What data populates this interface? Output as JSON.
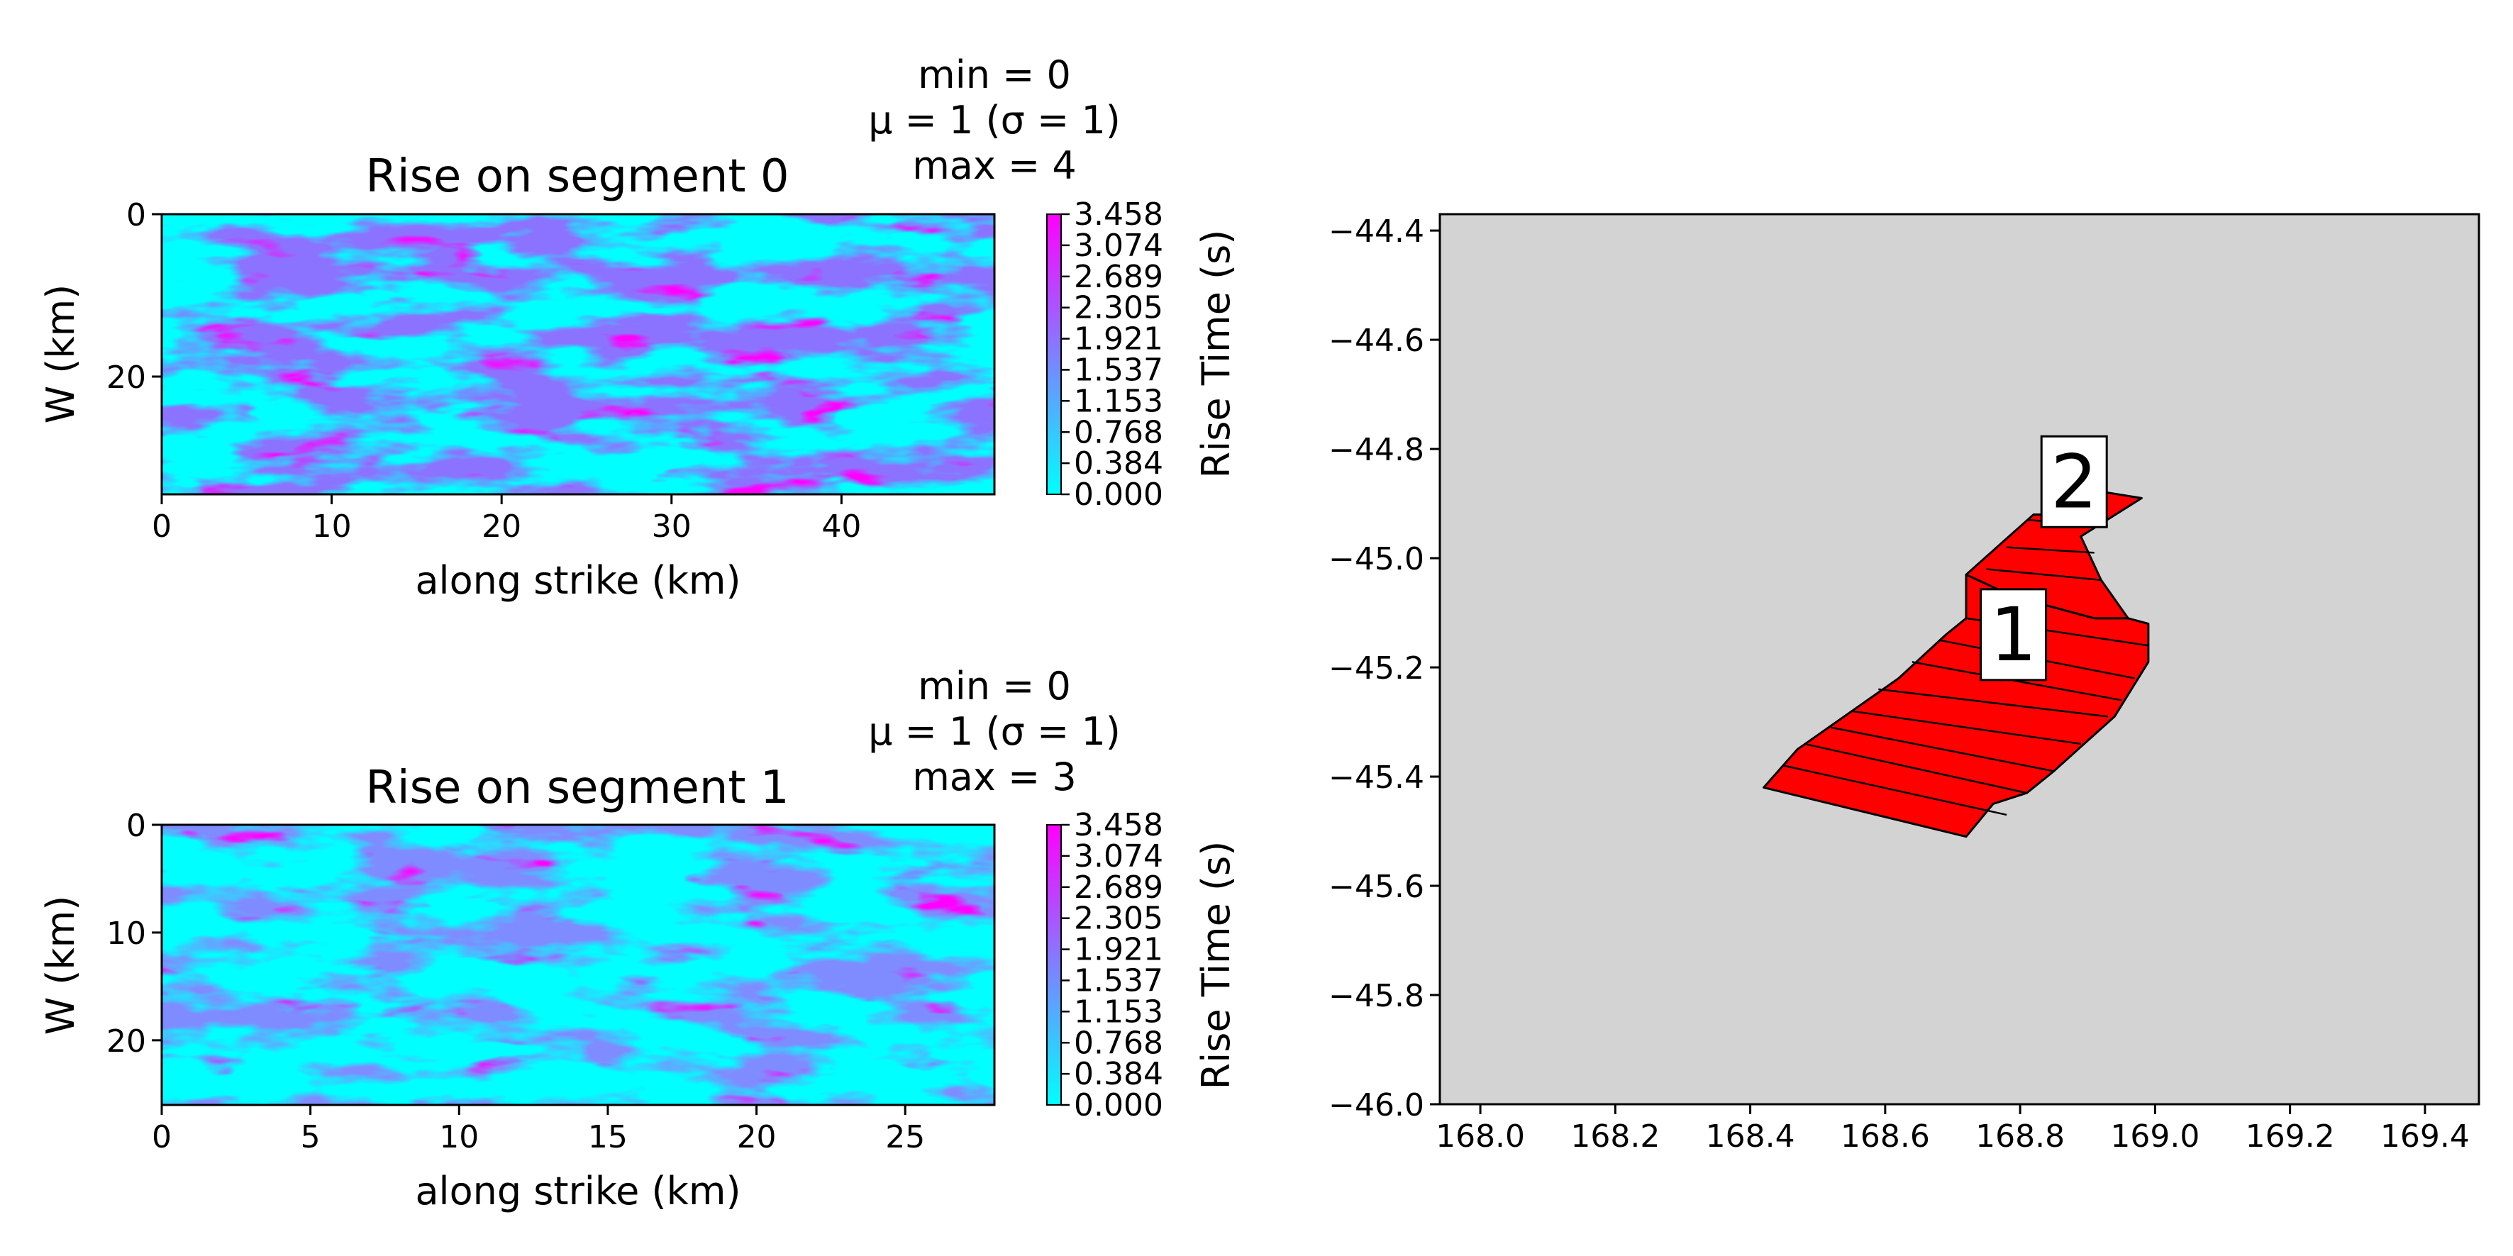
{
  "chart_data": [
    {
      "type": "heatmap",
      "title": "Rise on segment 0",
      "stats": [
        "min = 0",
        "μ = 1 (σ = 1)",
        "max = 4"
      ],
      "xlabel": "along strike (km)",
      "ylabel": "W (km)",
      "xlim": [
        0,
        49
      ],
      "ylim": [
        34.5,
        0
      ],
      "xticks": [
        0,
        10,
        20,
        30,
        40
      ],
      "yticks": [
        0,
        20
      ],
      "colorbar": {
        "label": "Rise Time (s)",
        "ticks": [
          "0.000",
          "0.384",
          "0.768",
          "1.153",
          "1.537",
          "1.921",
          "2.305",
          "2.689",
          "3.074",
          "3.458"
        ],
        "range": [
          0,
          3.458
        ],
        "colormap": [
          "#00ffff",
          "#ff00ff"
        ]
      }
    },
    {
      "type": "heatmap",
      "title": "Rise on segment 1",
      "stats": [
        "min = 0",
        "μ = 1 (σ = 1)",
        "max = 3"
      ],
      "xlabel": "along strike (km)",
      "ylabel": "W (km)",
      "xlim": [
        0,
        28
      ],
      "ylim": [
        26,
        0
      ],
      "xticks": [
        0,
        5,
        10,
        15,
        20,
        25
      ],
      "yticks": [
        0,
        10,
        20
      ],
      "colorbar": {
        "label": "Rise Time (s)",
        "ticks": [
          "0.000",
          "0.384",
          "0.768",
          "1.153",
          "1.537",
          "1.921",
          "2.305",
          "2.689",
          "3.074",
          "3.458"
        ],
        "range": [
          0,
          3.458
        ],
        "colormap": [
          "#00ffff",
          "#ff00ff"
        ]
      }
    },
    {
      "type": "map",
      "xlim": [
        167.94,
        169.48
      ],
      "ylim": [
        -46.0,
        -44.37
      ],
      "xticks": [
        "168.0",
        "168.2",
        "168.4",
        "168.6",
        "168.8",
        "169.0",
        "169.2",
        "169.4"
      ],
      "yticks": [
        "−44.4",
        "−44.6",
        "−44.8",
        "−45.0",
        "−45.2",
        "−45.4",
        "−45.6",
        "−45.8",
        "−46.0"
      ],
      "xtick_values": [
        168.0,
        168.2,
        168.4,
        168.6,
        168.8,
        169.0,
        169.2,
        169.4
      ],
      "ytick_values": [
        -44.4,
        -44.6,
        -44.8,
        -45.0,
        -45.2,
        -45.4,
        -45.6,
        -45.8,
        -46.0
      ],
      "background_color": "#d3d3d3",
      "fault_color": "#ff0000",
      "segments": [
        {
          "label": "1",
          "label_at": [
            168.79,
            -45.14
          ],
          "outline": [
            [
              168.72,
              -45.51
            ],
            [
              168.42,
              -45.42
            ],
            [
              168.47,
              -45.35
            ],
            [
              168.62,
              -45.22
            ],
            [
              168.69,
              -45.14
            ],
            [
              168.72,
              -45.11
            ],
            [
              168.72,
              -45.03
            ],
            [
              168.79,
              -45.07
            ],
            [
              168.91,
              -45.11
            ],
            [
              168.96,
              -45.11
            ],
            [
              168.99,
              -45.12
            ],
            [
              168.99,
              -45.19
            ],
            [
              168.94,
              -45.29
            ],
            [
              168.85,
              -45.39
            ],
            [
              168.81,
              -45.43
            ],
            [
              168.76,
              -45.45
            ]
          ],
          "strips": [
            [
              [
                168.45,
                -45.38
              ],
              [
                168.78,
                -45.47
              ]
            ],
            [
              [
                168.48,
                -45.34
              ],
              [
                168.81,
                -45.43
              ]
            ],
            [
              [
                168.52,
                -45.31
              ],
              [
                168.85,
                -45.39
              ]
            ],
            [
              [
                168.55,
                -45.28
              ],
              [
                168.89,
                -45.34
              ]
            ],
            [
              [
                168.59,
                -45.24
              ],
              [
                168.93,
                -45.29
              ]
            ],
            [
              [
                168.64,
                -45.19
              ],
              [
                168.95,
                -45.26
              ]
            ],
            [
              [
                168.68,
                -45.15
              ],
              [
                168.97,
                -45.22
              ]
            ],
            [
              [
                168.72,
                -45.11
              ],
              [
                168.99,
                -45.16
              ]
            ]
          ]
        },
        {
          "label": "2",
          "label_at": [
            168.88,
            -44.86
          ],
          "outline": [
            [
              168.72,
              -45.03
            ],
            [
              168.82,
              -44.92
            ],
            [
              168.86,
              -44.92
            ],
            [
              168.93,
              -44.88
            ],
            [
              168.98,
              -44.89
            ],
            [
              168.89,
              -44.96
            ],
            [
              168.92,
              -45.04
            ],
            [
              168.96,
              -45.11
            ],
            [
              168.91,
              -45.11
            ],
            [
              168.79,
              -45.07
            ]
          ],
          "strips": [
            [
              [
                168.81,
                -44.93
              ],
              [
                168.93,
                -44.94
              ]
            ],
            [
              [
                168.78,
                -44.98
              ],
              [
                168.91,
                -44.99
              ]
            ],
            [
              [
                168.75,
                -45.02
              ],
              [
                168.92,
                -45.04
              ]
            ]
          ]
        }
      ]
    }
  ]
}
